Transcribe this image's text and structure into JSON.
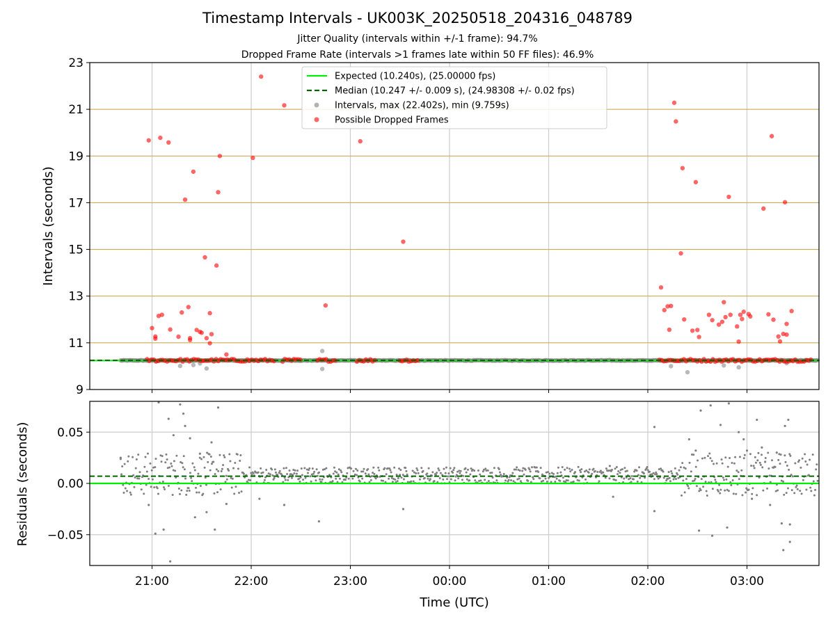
{
  "chart_data": {
    "type": "scatter",
    "title": "Timestamp Intervals - UK003K_20250518_204316_048789",
    "subtitle_lines": [
      "Jitter Quality (intervals within +/-1 frame): 94.7%",
      "Dropped Frame Rate (intervals >1 frames late within 50 FF files): 46.9%"
    ],
    "xlabel": "Time (UTC)",
    "x_ticks": [
      "21:00",
      "22:00",
      "23:00",
      "00:00",
      "01:00",
      "02:00",
      "03:00"
    ],
    "colors": {
      "expected": "#00ee00",
      "median": "#006400",
      "intervals": "#808080",
      "dropped": "#ff0000",
      "gold_grid": "#cdaa55",
      "grid": "#cccccc"
    },
    "top": {
      "ylabel": "Intervals (seconds)",
      "ylim": [
        9,
        23
      ],
      "y_ticks": [
        "9",
        "11",
        "13",
        "15",
        "17",
        "19",
        "21",
        "23"
      ],
      "gold_gridlines": [
        11,
        13,
        15,
        17,
        19,
        21,
        23
      ],
      "expected": 10.24,
      "median": 10.247,
      "legend": [
        "Expected (10.240s), (25.00000 fps)",
        "Median (10.247 +/- 0.009 s), (24.98308 +/- 0.02 fps)",
        "Intervals, max (22.402s), min (9.759s)",
        "Possible Dropped Frames"
      ],
      "legend_position": "top-center",
      "dropped_outliers": [
        [
          "20:58",
          19.67
        ],
        [
          "21:00",
          11.63
        ],
        [
          "21:02",
          11.27
        ],
        [
          "21:02",
          11.18
        ],
        [
          "21:04",
          12.15
        ],
        [
          "21:06",
          12.2
        ],
        [
          "21:05",
          19.78
        ],
        [
          "21:10",
          19.58
        ],
        [
          "21:11",
          11.57
        ],
        [
          "21:16",
          11.26
        ],
        [
          "21:18",
          12.3
        ],
        [
          "21:20",
          17.13
        ],
        [
          "21:22",
          12.53
        ],
        [
          "21:23",
          11.2
        ],
        [
          "21:23",
          11.12
        ],
        [
          "21:25",
          18.33
        ],
        [
          "21:27",
          11.55
        ],
        [
          "21:29",
          11.47
        ],
        [
          "21:30",
          11.43
        ],
        [
          "21:32",
          14.66
        ],
        [
          "21:33",
          11.2
        ],
        [
          "21:35",
          12.27
        ],
        [
          "21:35",
          10.98
        ],
        [
          "21:36",
          11.37
        ],
        [
          "21:39",
          14.31
        ],
        [
          "21:40",
          17.45
        ],
        [
          "21:41",
          19.0
        ],
        [
          "21:45",
          10.5
        ],
        [
          "22:01",
          18.92
        ],
        [
          "22:06",
          22.4
        ],
        [
          "22:20",
          21.17
        ],
        [
          "22:45",
          12.6
        ],
        [
          "23:06",
          19.63
        ],
        [
          "23:32",
          15.33
        ],
        [
          "02:08",
          13.37
        ],
        [
          "02:10",
          12.4
        ],
        [
          "02:12",
          12.56
        ],
        [
          "02:13",
          11.56
        ],
        [
          "02:14",
          12.58
        ],
        [
          "02:16",
          21.28
        ],
        [
          "02:17",
          20.48
        ],
        [
          "02:20",
          14.83
        ],
        [
          "02:21",
          18.48
        ],
        [
          "02:22",
          12.0
        ],
        [
          "02:27",
          11.52
        ],
        [
          "02:29",
          17.88
        ],
        [
          "02:30",
          11.55
        ],
        [
          "02:31",
          11.25
        ],
        [
          "02:37",
          12.2
        ],
        [
          "02:39",
          11.97
        ],
        [
          "02:43",
          11.78
        ],
        [
          "02:45",
          11.9
        ],
        [
          "02:46",
          12.74
        ],
        [
          "02:47",
          12.1
        ],
        [
          "02:49",
          17.25
        ],
        [
          "02:50",
          12.2
        ],
        [
          "02:54",
          11.7
        ],
        [
          "02:55",
          11.05
        ],
        [
          "02:56",
          12.2
        ],
        [
          "02:57",
          12.02
        ],
        [
          "02:58",
          12.33
        ],
        [
          "03:01",
          12.23
        ],
        [
          "03:02",
          12.13
        ],
        [
          "03:10",
          16.75
        ],
        [
          "03:13",
          12.22
        ],
        [
          "03:15",
          19.85
        ],
        [
          "03:16",
          11.99
        ],
        [
          "03:19",
          11.27
        ],
        [
          "03:20",
          11.06
        ],
        [
          "03:22",
          11.38
        ],
        [
          "03:23",
          17.02
        ],
        [
          "03:24",
          11.35
        ],
        [
          "03:24",
          11.81
        ],
        [
          "03:27",
          12.36
        ]
      ],
      "interval_outliers": [
        [
          "21:17",
          10.01
        ],
        [
          "21:25",
          10.05
        ],
        [
          "21:29",
          10.12
        ],
        [
          "21:33",
          9.9
        ],
        [
          "22:43",
          10.65
        ],
        [
          "22:43",
          9.88
        ],
        [
          "02:14",
          10.0
        ],
        [
          "02:24",
          9.74
        ],
        [
          "02:46",
          10.03
        ],
        [
          "02:55",
          9.95
        ],
        [
          "03:24",
          10.13
        ]
      ],
      "dropped_baseline_ranges": [
        [
          "20:57",
          "22:15"
        ],
        [
          "22:19",
          "22:30"
        ],
        [
          "22:40",
          "22:52"
        ],
        [
          "23:04",
          "23:16"
        ],
        [
          "23:30",
          "23:41"
        ],
        [
          "02:07",
          "03:39"
        ]
      ],
      "grey_baseline_range": [
        "20:41",
        "03:43"
      ]
    },
    "bottom": {
      "ylabel": "Residuals (seconds)",
      "ylim": [
        -0.08,
        0.08
      ],
      "y_ticks": [
        "−0.05",
        "0.00",
        "0.05"
      ],
      "y_tick_values": [
        -0.05,
        0.0,
        0.05
      ],
      "expected": 0.0,
      "median": 0.007,
      "band_range": [
        0.0,
        0.016
      ],
      "outliers": [
        [
          "20:41",
          0.025
        ],
        [
          "20:58",
          -0.021
        ],
        [
          "21:02",
          -0.049
        ],
        [
          "21:04",
          0.079
        ],
        [
          "21:07",
          -0.045
        ],
        [
          "21:10",
          0.063
        ],
        [
          "21:11",
          -0.076
        ],
        [
          "21:13",
          0.047
        ],
        [
          "21:17",
          0.077
        ],
        [
          "21:19",
          0.068
        ],
        [
          "21:20",
          0.056
        ],
        [
          "21:23",
          0.044
        ],
        [
          "21:26",
          -0.033
        ],
        [
          "21:29",
          0.029
        ],
        [
          "21:33",
          -0.028
        ],
        [
          "21:36",
          0.04
        ],
        [
          "21:38",
          -0.045
        ],
        [
          "21:40",
          0.074
        ],
        [
          "21:45",
          -0.02
        ],
        [
          "22:05",
          -0.015
        ],
        [
          "22:20",
          -0.021
        ],
        [
          "22:41",
          -0.037
        ],
        [
          "23:32",
          -0.025
        ],
        [
          "01:37",
          0.017
        ],
        [
          "01:39",
          -0.013
        ],
        [
          "02:04",
          0.055
        ],
        [
          "02:04",
          -0.027
        ],
        [
          "02:25",
          0.043
        ],
        [
          "02:29",
          0.032
        ],
        [
          "02:31",
          -0.046
        ],
        [
          "02:32",
          0.071
        ],
        [
          "02:39",
          -0.051
        ],
        [
          "02:38",
          0.076
        ],
        [
          "02:44",
          0.057
        ],
        [
          "02:48",
          -0.043
        ],
        [
          "02:49",
          0.078
        ],
        [
          "02:55",
          0.05
        ],
        [
          "02:58",
          0.043
        ],
        [
          "03:00",
          0.032
        ],
        [
          "03:03",
          -0.015
        ],
        [
          "03:06",
          0.062
        ],
        [
          "03:09",
          0.035
        ],
        [
          "03:11",
          0.021
        ],
        [
          "03:14",
          -0.021
        ],
        [
          "03:18",
          0.03
        ],
        [
          "03:21",
          -0.039
        ],
        [
          "03:22",
          -0.065
        ],
        [
          "03:23",
          0.056
        ],
        [
          "03:25",
          0.062
        ],
        [
          "03:26",
          -0.057
        ],
        [
          "03:26",
          -0.04
        ]
      ]
    }
  }
}
